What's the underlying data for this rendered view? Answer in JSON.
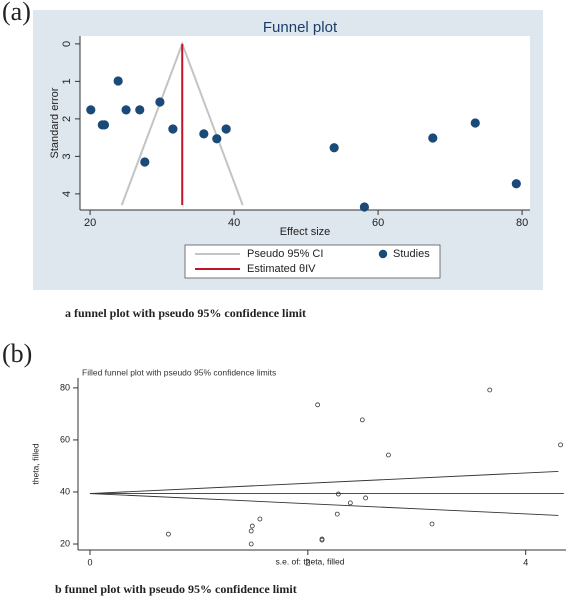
{
  "chart_data": [
    {
      "type": "scatter",
      "panel_label": "(a)",
      "title": "Funnel plot",
      "caption": "a  funnel plot with pseudo 95% confidence limit",
      "x_label": "Effect size",
      "y_label": "Standard error",
      "xlim": [
        18.6,
        81.1
      ],
      "xticks": [
        20,
        40,
        60,
        80
      ],
      "ylim": [
        -0.21,
        4.43
      ],
      "yticks": [
        0,
        1,
        2,
        3,
        4
      ],
      "y_reversed": true,
      "background": "#dfe7ee",
      "series": [
        {
          "name": "Pseudo 95% CI",
          "color": "#c4c4c4",
          "mode": "lines",
          "x": [
            24.4,
            32.8,
            41.2
          ],
          "values": [
            4.3,
            0,
            4.3
          ]
        },
        {
          "name": "Estimated θIV",
          "color": "#c0142a",
          "mode": "lines",
          "x": [
            32.8,
            32.8
          ],
          "values": [
            0,
            4.3
          ]
        },
        {
          "name": "Studies",
          "color": "#1a4a78",
          "mode": "markers",
          "marker": "filled",
          "x": [
            20.1,
            21.7,
            22.0,
            23.9,
            25.0,
            26.9,
            27.6,
            29.7,
            31.5,
            35.8,
            37.6,
            38.9,
            53.9,
            58.1,
            67.6,
            73.5,
            79.2
          ],
          "values": [
            1.76,
            2.16,
            2.16,
            0.99,
            1.76,
            1.76,
            3.15,
            1.55,
            2.27,
            2.4,
            2.53,
            2.27,
            2.77,
            4.35,
            2.51,
            2.11,
            3.73
          ]
        }
      ]
    },
    {
      "type": "scatter",
      "panel_label": "(b)",
      "title": "Filled funnel plot with pseudo 95% confidence limits",
      "caption": "b funnel plot with pseudo 95% confidence limit",
      "x_label": "s.e. of: theta, filled",
      "y_label": "theta, filled",
      "xlim": [
        -0.11,
        4.37
      ],
      "xticks": [
        0,
        2,
        4
      ],
      "ylim": [
        17.7,
        83.8
      ],
      "yticks": [
        20,
        40,
        60,
        80
      ],
      "y_reversed": false,
      "series": [
        {
          "color": "#333333",
          "mode": "lines",
          "x": [
            0,
            4.3
          ],
          "values": [
            39.4,
            47.9
          ]
        },
        {
          "color": "#333333",
          "mode": "lines",
          "x": [
            0,
            4.35
          ],
          "values": [
            39.4,
            39.4
          ]
        },
        {
          "color": "#333333",
          "mode": "lines",
          "x": [
            0,
            4.3
          ],
          "values": [
            39.4,
            31.0
          ]
        },
        {
          "color": "#333333",
          "mode": "markers",
          "marker": "hollow",
          "x": [
            3.67,
            2.09,
            2.5,
            2.74,
            4.32,
            2.28,
            2.39,
            2.53,
            2.27,
            3.14,
            1.56,
            0.72,
            1.49,
            1.48,
            1.48,
            2.13,
            2.13
          ],
          "values": [
            79.2,
            73.5,
            67.7,
            54.2,
            58.1,
            39.2,
            35.8,
            37.7,
            31.5,
            27.7,
            29.6,
            23.8,
            26.9,
            25.0,
            20.0,
            21.9,
            21.5
          ]
        }
      ]
    }
  ]
}
